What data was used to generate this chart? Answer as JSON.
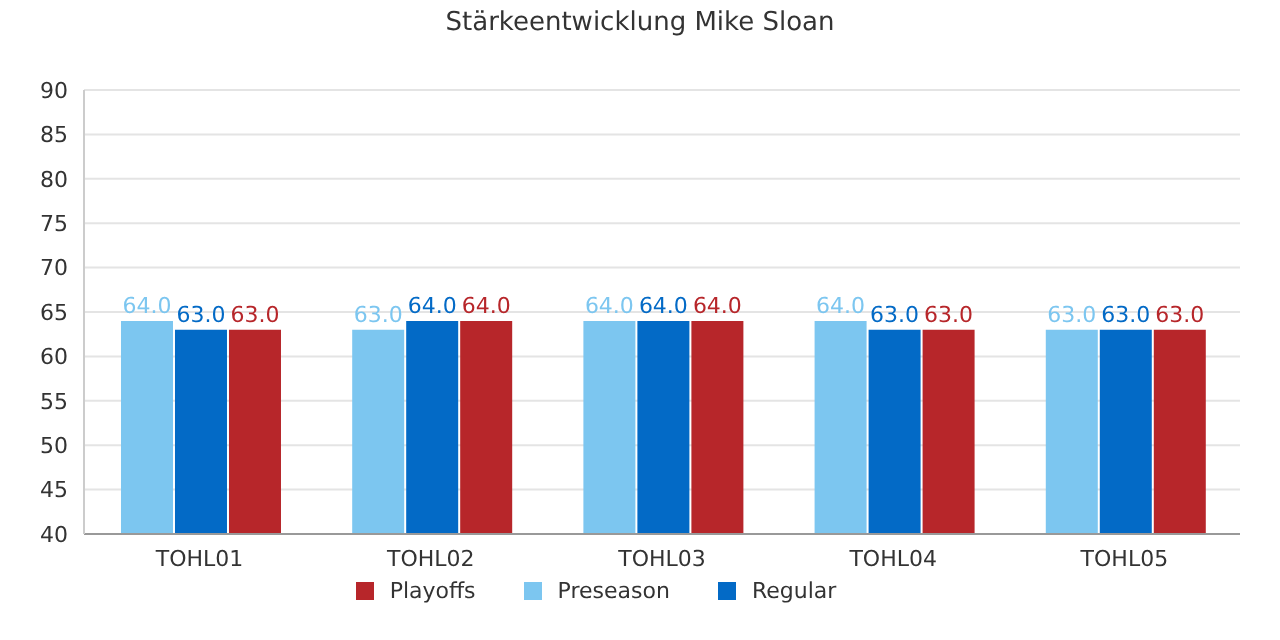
{
  "chart_data": {
    "type": "bar",
    "title": "Stärkeentwicklung Mike Sloan",
    "categories": [
      "TOHL01",
      "TOHL02",
      "TOHL03",
      "TOHL04",
      "TOHL05"
    ],
    "series": [
      {
        "name": "Preseason",
        "color": "#7cc6f0",
        "values": [
          64,
          63,
          64,
          64,
          63
        ],
        "value_labels": [
          "64.0",
          "63.0",
          "64.0",
          "64.0",
          "63.0"
        ]
      },
      {
        "name": "Regular",
        "color": "#036ac6",
        "values": [
          63,
          64,
          64,
          63,
          63
        ],
        "value_labels": [
          "63.0",
          "64.0",
          "64.0",
          "63.0",
          "63.0"
        ]
      },
      {
        "name": "Playoffs",
        "color": "#b7262a",
        "values": [
          63,
          64,
          64,
          63,
          63
        ],
        "value_labels": [
          "63.0",
          "64.0",
          "64.0",
          "63.0",
          "63.0"
        ]
      }
    ],
    "ylim": [
      40,
      90
    ],
    "yticks": [
      40,
      45,
      50,
      55,
      60,
      65,
      70,
      75,
      80,
      85,
      90
    ],
    "grid": "y",
    "legend": "bottom"
  }
}
